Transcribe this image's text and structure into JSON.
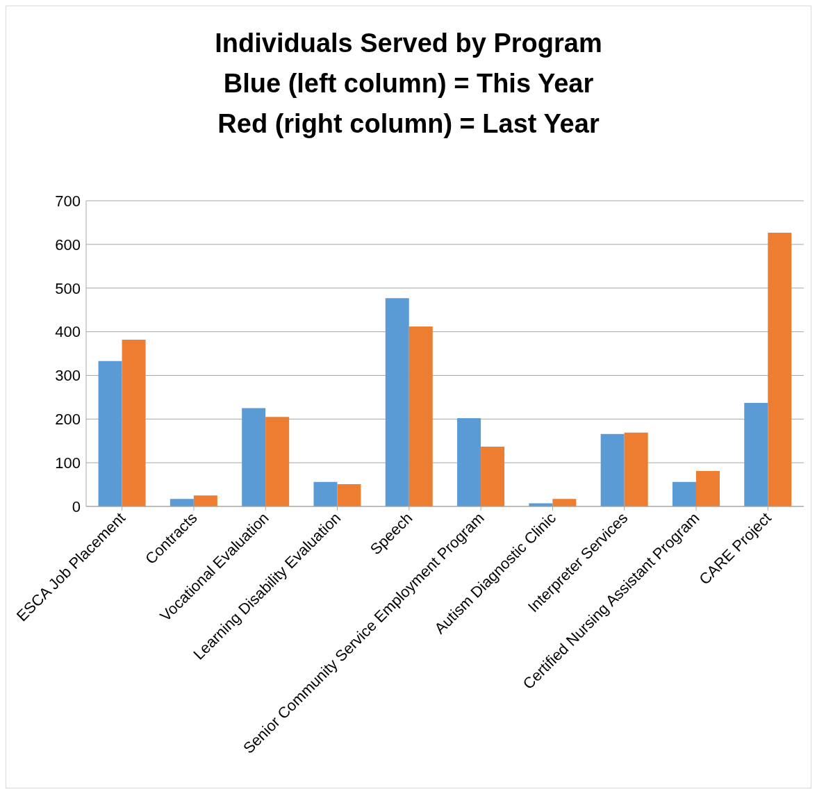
{
  "chart_data": {
    "type": "bar",
    "title": "Individuals Served by Program\nBlue (left column) = This Year\nRed (right column) = Last Year",
    "categories": [
      "ESCA Job Placement",
      "Contracts",
      "Vocational Evaluation",
      "Learning Disability Evaluation",
      "Speech",
      "Senior Community Service Employment Program",
      "Autism Diagnostic Clinic",
      "Interpreter Services",
      "Certified Nursing Assistant Program",
      "CARE Project"
    ],
    "series": [
      {
        "color": "#5b9bd5",
        "values": [
          333,
          17,
          225,
          56,
          477,
          202,
          7,
          166,
          56,
          237
        ]
      },
      {
        "color": "#ed7d31",
        "values": [
          382,
          25,
          205,
          51,
          412,
          137,
          17,
          169,
          81,
          627
        ]
      }
    ],
    "ylim": [
      0,
      700
    ],
    "yticks": [
      0,
      100,
      200,
      300,
      400,
      500,
      600,
      700
    ],
    "grid": "y",
    "legend": false
  }
}
